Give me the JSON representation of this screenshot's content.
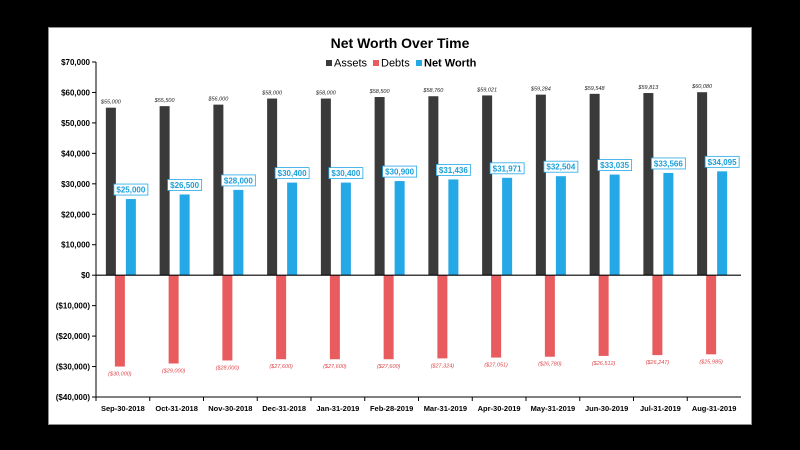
{
  "chart_data": {
    "type": "bar",
    "title": "Net Worth Over Time",
    "categories": [
      "Sep-30-2018",
      "Oct-31-2018",
      "Nov-30-2018",
      "Dec-31-2018",
      "Jan-31-2019",
      "Feb-28-2019",
      "Mar-31-2019",
      "Apr-30-2019",
      "May-31-2019",
      "Jun-30-2019",
      "Jul-31-2019",
      "Aug-31-2019"
    ],
    "series": [
      {
        "name": "Assets",
        "values": [
          55000,
          55500,
          56000,
          58000,
          58000,
          58500,
          58760,
          59021,
          59284,
          59548,
          59813,
          60080
        ],
        "labels": [
          "$55,000",
          "$55,500",
          "$56,000",
          "$58,000",
          "$58,000",
          "$58,500",
          "$58,760",
          "$59,021",
          "$59,284",
          "$59,548",
          "$59,813",
          "$60,080"
        ]
      },
      {
        "name": "Debts",
        "values": [
          -30000,
          -29000,
          -28000,
          -27600,
          -27600,
          -27600,
          -27324,
          -27051,
          -26780,
          -26512,
          -26247,
          -25985
        ],
        "labels": [
          "($30,000)",
          "($29,000)",
          "($28,000)",
          "($27,600)",
          "($27,600)",
          "($27,600)",
          "($27,324)",
          "($27,051)",
          "($26,780)",
          "($26,512)",
          "($26,247)",
          "($25,985)"
        ]
      },
      {
        "name": "Net Worth",
        "values": [
          25000,
          26500,
          28000,
          30400,
          30400,
          30900,
          31436,
          31971,
          32504,
          33035,
          33566,
          34095
        ],
        "labels": [
          "$25,000",
          "$26,500",
          "$28,000",
          "$30,400",
          "$30,400",
          "$30,900",
          "$31,436",
          "$31,971",
          "$32,504",
          "$33,035",
          "$33,566",
          "$34,095"
        ]
      }
    ],
    "ylim": [
      -40000,
      70000
    ],
    "yticks": [
      70000,
      60000,
      50000,
      40000,
      30000,
      20000,
      10000,
      0,
      -10000,
      -20000,
      -30000,
      -40000
    ],
    "ytick_labels": [
      "$70,000",
      "$60,000",
      "$50,000",
      "$40,000",
      "$30,000",
      "$20,000",
      "$10,000",
      "$0",
      "($10,000)",
      "($20,000)",
      "($30,000)",
      "($40,000)"
    ],
    "legend_placement": "top-center",
    "grid": false,
    "colors": {
      "Assets": "#3a3a3a",
      "Debts": "#e85c5f",
      "Net Worth": "#24a8e6"
    }
  }
}
